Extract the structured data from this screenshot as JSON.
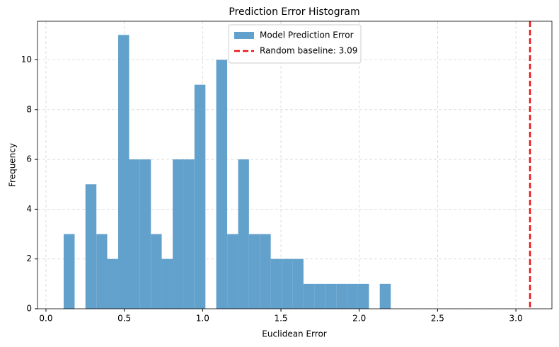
{
  "chart_data": {
    "type": "histogram",
    "title": "Prediction Error Histogram",
    "x_label": "Euclidean Error",
    "y_label": "Frequency",
    "bins": [
      0.113,
      0.183,
      0.252,
      0.322,
      0.391,
      0.461,
      0.531,
      0.6,
      0.67,
      0.739,
      0.809,
      0.879,
      0.948,
      1.018,
      1.087,
      1.157,
      1.227,
      1.296,
      1.366,
      1.435,
      1.505,
      1.575,
      1.644,
      1.714,
      1.783,
      1.853,
      1.923,
      1.992,
      2.062,
      2.131,
      2.201
    ],
    "series": [
      {
        "name": "Model Prediction Error",
        "color": "#62a1cc",
        "values": [
          3,
          0,
          5,
          3,
          2,
          11,
          6,
          6,
          3,
          2,
          6,
          6,
          9,
          0,
          10,
          3,
          6,
          3,
          3,
          2,
          2,
          2,
          1,
          1,
          1,
          1,
          1,
          1,
          0,
          1
        ]
      }
    ],
    "vlines": [
      {
        "name": "Random baseline: 3.09",
        "x": 3.09,
        "color": "#ee1111"
      }
    ],
    "xlim": [
      -0.054,
      3.23
    ],
    "ylim": [
      0,
      11.55
    ],
    "xticks": [
      {
        "value": 0,
        "label": "0.0"
      },
      {
        "value": 0.5,
        "label": "0.5"
      },
      {
        "value": 1,
        "label": "1.0"
      },
      {
        "value": 1.5,
        "label": "1.5"
      },
      {
        "value": 2,
        "label": "2.0"
      },
      {
        "value": 2.5,
        "label": "2.5"
      },
      {
        "value": 3,
        "label": "3.0"
      }
    ],
    "yticks": [
      0,
      2,
      4,
      6,
      8,
      10
    ],
    "grid": true,
    "legend": "upper center"
  }
}
